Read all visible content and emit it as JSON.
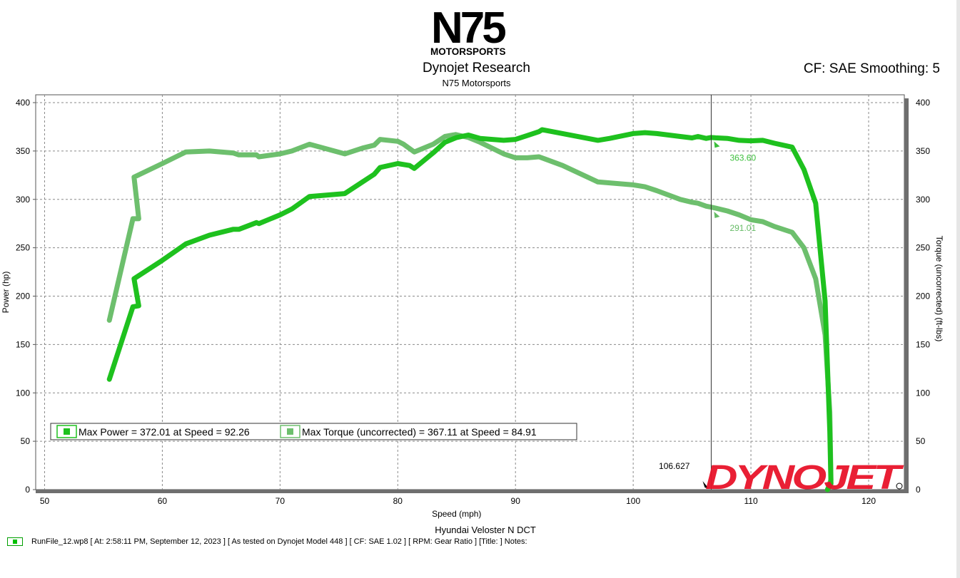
{
  "header": {
    "logo_text_main": "N75",
    "logo_text_sub": "MOTORSPORTS",
    "title": "Dynojet Research",
    "subtitle": "N75 Motorsports",
    "cf_smoothing": "CF: SAE Smoothing: 5"
  },
  "footer": {
    "vehicle": "Hyundai Veloster N DCT",
    "runfile_info": "RunFile_12.wp8 [ At: 2:58:11 PM, September 12, 2023 ] [ As tested on Dynojet Model 448 ] [ CF: SAE 1.02 ] [ RPM: Gear Ratio ] [Title: ]  Notes:"
  },
  "colors": {
    "power": "#1ec11e",
    "torque": "#6dbf6d",
    "power_label": "#3cbf3c",
    "torque_label": "#66bb66",
    "grid": "#8a8a8a",
    "brand_red": "#e8142a"
  },
  "brand_logo_text": "DYNOJET",
  "chart_data": {
    "type": "line",
    "xlabel": "Speed (mph)",
    "ylabel_left": "Power (hp)",
    "ylabel_right": "Torque (uncorrected) (ft-lbs)",
    "xlim": [
      50,
      123
    ],
    "ylim": [
      0,
      400
    ],
    "x_ticks": [
      50,
      60,
      70,
      80,
      90,
      100,
      110,
      120
    ],
    "y_ticks": [
      0,
      50,
      100,
      150,
      200,
      250,
      300,
      350,
      400
    ],
    "grid": true,
    "cursor": {
      "x": 106.627,
      "label": "106.627"
    },
    "cursor_values": [
      {
        "series": "power",
        "value": 363.6,
        "label": "363.60"
      },
      {
        "series": "torque",
        "value": 291.01,
        "label": "291.01"
      }
    ],
    "legend": [
      {
        "series": "power",
        "label": "Max Power = 372.01 at Speed = 92.26"
      },
      {
        "series": "torque",
        "label": "Max Torque (uncorrected) = 367.11 at Speed = 84.91"
      }
    ],
    "series": [
      {
        "key": "power",
        "points": [
          [
            55.5,
            114
          ],
          [
            57.5,
            189
          ],
          [
            58,
            190
          ],
          [
            57.6,
            218
          ],
          [
            60,
            237
          ],
          [
            62,
            254
          ],
          [
            64,
            263
          ],
          [
            66,
            269
          ],
          [
            66.5,
            269
          ],
          [
            68,
            276
          ],
          [
            68.2,
            275
          ],
          [
            70,
            284
          ],
          [
            71,
            290
          ],
          [
            72.5,
            303
          ],
          [
            75.5,
            306
          ],
          [
            77,
            318
          ],
          [
            78,
            326
          ],
          [
            78.5,
            333
          ],
          [
            80,
            337
          ],
          [
            81,
            335
          ],
          [
            81.4,
            332
          ],
          [
            83,
            348
          ],
          [
            84,
            359
          ],
          [
            85,
            364
          ],
          [
            86,
            366.5
          ],
          [
            87,
            363
          ],
          [
            89,
            361
          ],
          [
            90,
            362
          ],
          [
            91,
            366
          ],
          [
            92,
            370
          ],
          [
            92.26,
            372
          ],
          [
            94,
            368
          ],
          [
            97,
            361
          ],
          [
            98,
            363
          ],
          [
            100,
            368
          ],
          [
            101,
            369
          ],
          [
            102,
            368
          ],
          [
            104,
            365
          ],
          [
            105,
            363.5
          ],
          [
            105.5,
            365
          ],
          [
            106.2,
            363
          ],
          [
            106.6,
            364
          ],
          [
            107,
            363.6
          ],
          [
            108,
            363
          ],
          [
            109,
            361
          ],
          [
            110,
            360.5
          ],
          [
            111,
            361
          ],
          [
            112,
            358
          ],
          [
            113.5,
            354
          ],
          [
            114.5,
            331
          ],
          [
            115.5,
            296
          ],
          [
            116.3,
            195
          ],
          [
            116.7,
            60
          ],
          [
            116.8,
            6
          ],
          [
            116.5,
            0
          ]
        ]
      },
      {
        "key": "torque",
        "points": [
          [
            55.5,
            175
          ],
          [
            57.5,
            280
          ],
          [
            58,
            280
          ],
          [
            57.6,
            323
          ],
          [
            60,
            337
          ],
          [
            62,
            349
          ],
          [
            64,
            350
          ],
          [
            66,
            348
          ],
          [
            66.5,
            346
          ],
          [
            68,
            346
          ],
          [
            68.2,
            344
          ],
          [
            70,
            347
          ],
          [
            71,
            350
          ],
          [
            72.5,
            357
          ],
          [
            75.5,
            347
          ],
          [
            77,
            353
          ],
          [
            78,
            356
          ],
          [
            78.5,
            362
          ],
          [
            80,
            360
          ],
          [
            80.5,
            357
          ],
          [
            81.4,
            349
          ],
          [
            83,
            357
          ],
          [
            84,
            365
          ],
          [
            84.91,
            367
          ],
          [
            86,
            364
          ],
          [
            87,
            359
          ],
          [
            89,
            347
          ],
          [
            90,
            343
          ],
          [
            91,
            343
          ],
          [
            92,
            344
          ],
          [
            94,
            335
          ],
          [
            97,
            318
          ],
          [
            100,
            315
          ],
          [
            101,
            313
          ],
          [
            102,
            309
          ],
          [
            104,
            300
          ],
          [
            105,
            297
          ],
          [
            105.5,
            296
          ],
          [
            106.2,
            293
          ],
          [
            106.6,
            292
          ],
          [
            107,
            291
          ],
          [
            108,
            288
          ],
          [
            109,
            284
          ],
          [
            110,
            279
          ],
          [
            111,
            277
          ],
          [
            112,
            272
          ],
          [
            113.5,
            266
          ],
          [
            114.5,
            250
          ],
          [
            115.5,
            218
          ],
          [
            116.3,
            160
          ],
          [
            116.7,
            80
          ],
          [
            116.8,
            10
          ],
          [
            116.5,
            0
          ]
        ]
      }
    ]
  }
}
